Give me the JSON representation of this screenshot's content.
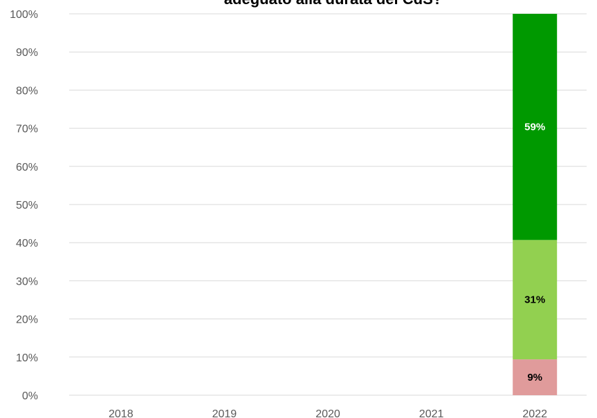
{
  "chart_data": {
    "type": "bar",
    "stacked": true,
    "title": "adeguato alla durata del CdS?",
    "categories": [
      "2018",
      "2019",
      "2020",
      "2021",
      "2022"
    ],
    "series": [
      {
        "values": [
          null,
          null,
          null,
          null,
          9.4
        ],
        "labels": [
          "",
          "",
          "",
          "",
          "9%"
        ],
        "color": "#e09b9b",
        "label_color": "#000000"
      },
      {
        "values": [
          null,
          null,
          null,
          null,
          31.3
        ],
        "labels": [
          "",
          "",
          "",
          "",
          "31%"
        ],
        "color": "#92d050",
        "label_color": "#000000"
      },
      {
        "values": [
          null,
          null,
          null,
          null,
          59.3
        ],
        "labels": [
          "",
          "",
          "",
          "",
          "59%"
        ],
        "color": "#009900",
        "label_color": "#ffffff"
      }
    ],
    "ylim": [
      0,
      100
    ],
    "yticks": [
      "0%",
      "10%",
      "20%",
      "30%",
      "40%",
      "50%",
      "60%",
      "70%",
      "80%",
      "90%",
      "100%"
    ],
    "grid": true,
    "gridColor": "#d9d9d9",
    "xlabel": "",
    "ylabel": ""
  }
}
